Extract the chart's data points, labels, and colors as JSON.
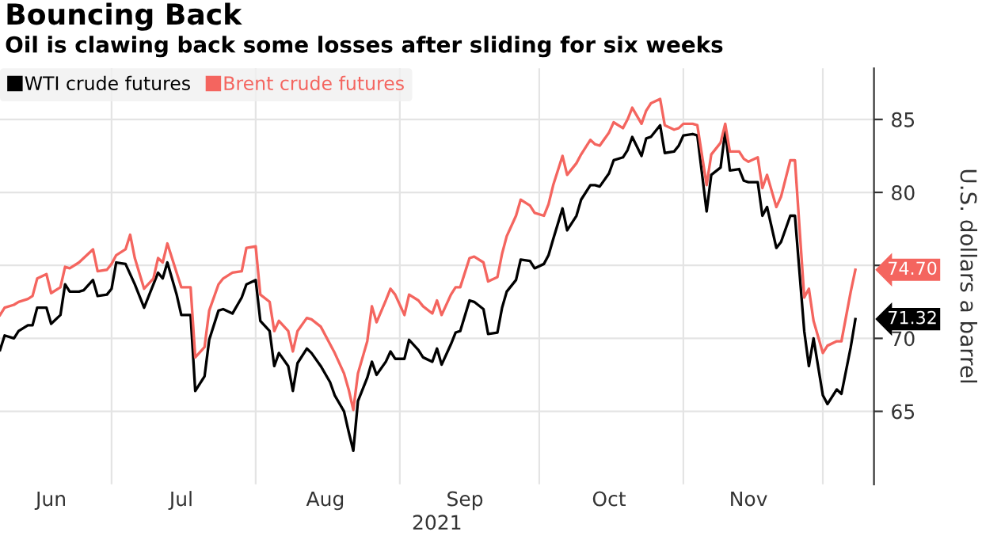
{
  "chart_data": {
    "type": "line",
    "title": "Bouncing Back",
    "subtitle": "Oil is clawing back some losses after sliding for six weeks",
    "xlabel": "2021",
    "ylabel": "U.S. dollars a barrel",
    "series": [
      {
        "name": "WTI crude futures",
        "color": "#000000",
        "x": [
          "2021-06-07",
          "2021-06-08",
          "2021-06-10",
          "2021-06-11",
          "2021-06-13",
          "2021-06-14",
          "2021-06-15",
          "2021-06-17",
          "2021-06-18",
          "2021-06-20",
          "2021-06-21",
          "2021-06-22",
          "2021-06-24",
          "2021-06-25",
          "2021-06-27",
          "2021-06-28",
          "2021-06-30",
          "2021-07-01",
          "2021-07-02",
          "2021-07-04",
          "2021-07-06",
          "2021-07-08",
          "2021-07-11",
          "2021-07-12",
          "2021-07-13",
          "2021-07-15",
          "2021-07-16",
          "2021-07-18",
          "2021-07-19",
          "2021-07-21",
          "2021-07-22",
          "2021-07-24",
          "2021-07-25",
          "2021-07-27",
          "2021-07-29",
          "2021-07-30",
          "2021-08-01",
          "2021-08-02",
          "2021-08-04",
          "2021-08-05",
          "2021-08-06",
          "2021-08-08",
          "2021-08-09",
          "2021-08-10",
          "2021-08-12",
          "2021-08-13",
          "2021-08-15",
          "2021-08-17",
          "2021-08-18",
          "2021-08-20",
          "2021-08-21",
          "2021-08-22",
          "2021-08-23",
          "2021-08-25",
          "2021-08-26",
          "2021-08-27",
          "2021-08-29",
          "2021-08-30",
          "2021-08-31",
          "2021-09-02",
          "2021-09-03",
          "2021-09-05",
          "2021-09-06",
          "2021-09-08",
          "2021-09-09",
          "2021-09-10",
          "2021-09-12",
          "2021-09-13",
          "2021-09-14",
          "2021-09-16",
          "2021-09-17",
          "2021-09-19",
          "2021-09-20",
          "2021-09-22",
          "2021-09-23",
          "2021-09-24",
          "2021-09-26",
          "2021-09-27",
          "2021-09-29",
          "2021-09-30",
          "2021-10-02",
          "2021-10-03",
          "2021-10-04",
          "2021-10-06",
          "2021-10-07",
          "2021-10-09",
          "2021-10-10",
          "2021-10-12",
          "2021-10-13",
          "2021-10-14",
          "2021-10-16",
          "2021-10-17",
          "2021-10-19",
          "2021-10-20",
          "2021-10-21",
          "2021-10-23",
          "2021-10-24",
          "2021-10-25",
          "2021-10-27",
          "2021-10-28",
          "2021-10-30",
          "2021-10-31",
          "2021-11-01",
          "2021-11-03",
          "2021-11-04",
          "2021-11-06",
          "2021-11-07",
          "2021-11-09",
          "2021-11-10",
          "2021-11-11",
          "2021-11-13",
          "2021-11-14",
          "2021-11-15",
          "2021-11-17",
          "2021-11-18",
          "2021-11-19",
          "2021-11-21",
          "2021-11-22",
          "2021-11-24",
          "2021-11-25",
          "2021-11-27",
          "2021-11-28",
          "2021-11-29",
          "2021-12-01",
          "2021-12-02",
          "2021-12-04",
          "2021-12-05",
          "2021-12-07",
          "2021-12-08"
        ],
        "values": [
          69.2,
          70.2,
          70.0,
          70.5,
          70.9,
          70.9,
          72.1,
          72.1,
          71.0,
          71.6,
          73.7,
          73.2,
          73.2,
          73.3,
          74.0,
          72.9,
          73.0,
          73.4,
          75.2,
          75.1,
          73.7,
          72.1,
          74.5,
          74.1,
          75.2,
          73.0,
          71.6,
          71.6,
          66.4,
          67.4,
          69.9,
          71.9,
          72.0,
          71.7,
          72.8,
          73.7,
          74.0,
          71.2,
          70.5,
          68.1,
          69.0,
          68.1,
          66.4,
          68.3,
          69.3,
          69.0,
          68.1,
          67.0,
          66.1,
          65.0,
          63.6,
          62.3,
          65.7,
          67.3,
          68.4,
          67.5,
          68.4,
          69.1,
          68.6,
          68.6,
          69.9,
          69.2,
          68.7,
          68.4,
          69.3,
          68.2,
          69.6,
          70.4,
          70.5,
          72.6,
          72.5,
          72.0,
          70.3,
          70.4,
          72.1,
          73.2,
          74.0,
          75.4,
          75.3,
          74.8,
          75.1,
          75.7,
          76.8,
          78.9,
          77.4,
          78.4,
          79.5,
          80.5,
          80.5,
          80.4,
          81.3,
          82.2,
          82.4,
          82.9,
          83.8,
          82.5,
          83.7,
          83.8,
          84.6,
          82.7,
          82.8,
          83.2,
          83.9,
          84.0,
          83.9,
          78.7,
          81.2,
          81.7,
          84.2,
          81.5,
          81.6,
          80.8,
          80.7,
          80.7,
          78.4,
          79.0,
          76.2,
          76.6,
          78.4,
          78.4,
          70.5,
          68.1,
          70.0,
          66.1,
          65.5,
          66.5,
          66.2,
          69.4,
          71.32
        ],
        "value_labels": [
          null,
          null,
          null,
          null,
          null,
          null,
          null,
          null,
          null,
          null,
          null,
          null,
          null,
          null,
          null,
          null,
          null,
          null,
          null,
          null,
          null,
          null,
          null,
          null,
          null,
          null,
          null,
          null,
          null,
          null,
          null,
          null,
          null,
          null,
          null,
          null,
          null,
          null,
          null,
          null,
          null,
          null,
          null,
          null,
          null,
          null,
          null,
          null,
          null,
          null,
          null,
          null,
          null,
          null,
          null,
          null,
          null,
          null,
          null,
          null,
          null,
          null,
          null,
          null,
          null,
          null,
          null,
          null,
          null,
          null,
          null,
          null,
          null,
          null,
          null,
          null,
          null,
          null,
          null,
          null,
          null,
          null,
          null,
          null,
          null,
          null,
          null,
          null,
          null,
          null,
          null,
          null,
          null,
          null,
          null,
          null,
          null,
          null,
          null,
          null,
          null,
          null,
          null,
          null,
          null,
          null,
          null,
          null,
          null,
          null,
          null,
          null,
          null,
          null,
          null,
          null,
          null,
          null,
          null,
          null,
          null,
          null,
          null,
          null,
          null,
          null,
          null,
          null,
          "71.32"
        ]
      },
      {
        "name": "Brent crude futures",
        "color": "#f4655f",
        "x": [
          "2021-06-07",
          "2021-06-08",
          "2021-06-10",
          "2021-06-11",
          "2021-06-13",
          "2021-06-14",
          "2021-06-15",
          "2021-06-17",
          "2021-06-18",
          "2021-06-20",
          "2021-06-21",
          "2021-06-22",
          "2021-06-24",
          "2021-06-25",
          "2021-06-27",
          "2021-06-28",
          "2021-06-30",
          "2021-07-01",
          "2021-07-02",
          "2021-07-04",
          "2021-07-05",
          "2021-07-06",
          "2021-07-08",
          "2021-07-10",
          "2021-07-11",
          "2021-07-12",
          "2021-07-13",
          "2021-07-15",
          "2021-07-16",
          "2021-07-18",
          "2021-07-19",
          "2021-07-21",
          "2021-07-22",
          "2021-07-24",
          "2021-07-25",
          "2021-07-27",
          "2021-07-29",
          "2021-07-30",
          "2021-08-01",
          "2021-08-02",
          "2021-08-04",
          "2021-08-05",
          "2021-08-06",
          "2021-08-08",
          "2021-08-09",
          "2021-08-10",
          "2021-08-12",
          "2021-08-13",
          "2021-08-15",
          "2021-08-17",
          "2021-08-18",
          "2021-08-20",
          "2021-08-21",
          "2021-08-22",
          "2021-08-23",
          "2021-08-25",
          "2021-08-26",
          "2021-08-27",
          "2021-08-29",
          "2021-08-30",
          "2021-08-31",
          "2021-09-02",
          "2021-09-03",
          "2021-09-05",
          "2021-09-06",
          "2021-09-08",
          "2021-09-09",
          "2021-09-10",
          "2021-09-12",
          "2021-09-13",
          "2021-09-14",
          "2021-09-16",
          "2021-09-17",
          "2021-09-19",
          "2021-09-20",
          "2021-09-22",
          "2021-09-23",
          "2021-09-24",
          "2021-09-26",
          "2021-09-27",
          "2021-09-29",
          "2021-09-30",
          "2021-10-02",
          "2021-10-03",
          "2021-10-04",
          "2021-10-06",
          "2021-10-07",
          "2021-10-09",
          "2021-10-10",
          "2021-10-12",
          "2021-10-13",
          "2021-10-14",
          "2021-10-16",
          "2021-10-17",
          "2021-10-19",
          "2021-10-20",
          "2021-10-21",
          "2021-10-23",
          "2021-10-24",
          "2021-10-25",
          "2021-10-27",
          "2021-10-28",
          "2021-10-30",
          "2021-10-31",
          "2021-11-01",
          "2021-11-03",
          "2021-11-04",
          "2021-11-06",
          "2021-11-07",
          "2021-11-09",
          "2021-11-10",
          "2021-11-11",
          "2021-11-13",
          "2021-11-14",
          "2021-11-15",
          "2021-11-17",
          "2021-11-18",
          "2021-11-19",
          "2021-11-21",
          "2021-11-22",
          "2021-11-24",
          "2021-11-25",
          "2021-11-27",
          "2021-11-28",
          "2021-11-29",
          "2021-12-01",
          "2021-12-02",
          "2021-12-04",
          "2021-12-05",
          "2021-12-07",
          "2021-12-08"
        ],
        "values": [
          71.6,
          72.1,
          72.3,
          72.5,
          72.7,
          72.9,
          74.1,
          74.4,
          73.1,
          73.5,
          74.9,
          74.8,
          75.2,
          75.5,
          76.1,
          74.6,
          74.7,
          75.1,
          75.7,
          76.1,
          77.1,
          75.5,
          73.4,
          74.1,
          75.5,
          75.2,
          76.5,
          74.5,
          73.5,
          73.5,
          68.7,
          69.4,
          71.9,
          73.7,
          74.1,
          74.5,
          74.6,
          76.2,
          76.3,
          73.0,
          72.5,
          70.5,
          71.2,
          70.5,
          69.1,
          70.5,
          71.4,
          71.3,
          70.8,
          69.6,
          69.0,
          67.6,
          66.5,
          65.1,
          67.6,
          69.8,
          72.2,
          71.1,
          72.6,
          73.4,
          73.0,
          71.6,
          73.0,
          72.6,
          72.2,
          71.7,
          72.6,
          71.6,
          73.0,
          73.5,
          73.5,
          75.5,
          75.6,
          75.2,
          73.9,
          74.2,
          75.8,
          77.0,
          78.4,
          79.5,
          79.1,
          78.6,
          78.4,
          79.2,
          80.5,
          82.5,
          81.2,
          82.0,
          82.6,
          83.6,
          83.3,
          83.2,
          84.1,
          84.8,
          84.4,
          85.0,
          85.8,
          84.7,
          85.6,
          86.1,
          86.4,
          84.6,
          84.3,
          84.4,
          84.7,
          84.7,
          84.6,
          80.5,
          82.6,
          83.4,
          84.7,
          82.8,
          82.8,
          82.3,
          82.1,
          82.4,
          80.3,
          81.2,
          79.0,
          79.7,
          82.2,
          82.2,
          72.8,
          73.4,
          71.2,
          69.0,
          69.5,
          69.8,
          69.8,
          73.2,
          74.7
        ],
        "value_labels": [
          null,
          null,
          null,
          null,
          null,
          null,
          null,
          null,
          null,
          null,
          null,
          null,
          null,
          null,
          null,
          null,
          null,
          null,
          null,
          null,
          null,
          null,
          null,
          null,
          null,
          null,
          null,
          null,
          null,
          null,
          null,
          null,
          null,
          null,
          null,
          null,
          null,
          null,
          null,
          null,
          null,
          null,
          null,
          null,
          null,
          null,
          null,
          null,
          null,
          null,
          null,
          null,
          null,
          null,
          null,
          null,
          null,
          null,
          null,
          null,
          null,
          null,
          null,
          null,
          null,
          null,
          null,
          null,
          null,
          null,
          null,
          null,
          null,
          null,
          null,
          null,
          null,
          null,
          null,
          null,
          null,
          null,
          null,
          null,
          null,
          null,
          null,
          null,
          null,
          null,
          null,
          null,
          null,
          null,
          null,
          null,
          null,
          null,
          null,
          null,
          null,
          null,
          null,
          null,
          null,
          null,
          null,
          null,
          null,
          null,
          null,
          null,
          null,
          null,
          null,
          null,
          null,
          null,
          null,
          null,
          null,
          null,
          null,
          null,
          null,
          null,
          null,
          null,
          null,
          null,
          "74.70"
        ]
      }
    ],
    "xlim": [
      "2021-06-07",
      "2021-12-12"
    ],
    "xticks": [
      {
        "value": "2021-06-18",
        "label": "Jun"
      },
      {
        "value": "2021-07-01",
        "label": null
      },
      {
        "value": "2021-07-16",
        "label": "Jul"
      },
      {
        "value": "2021-08-01",
        "label": null
      },
      {
        "value": "2021-08-16",
        "label": "Aug"
      },
      {
        "value": "2021-09-01",
        "label": null
      },
      {
        "value": "2021-09-15",
        "label": "Sep"
      },
      {
        "value": "2021-10-01",
        "label": null
      },
      {
        "value": "2021-10-16",
        "label": "Oct"
      },
      {
        "value": "2021-11-01",
        "label": null
      },
      {
        "value": "2021-11-15",
        "label": "Nov"
      },
      {
        "value": "2021-12-01",
        "label": null
      }
    ],
    "ylim": [
      60,
      88.5
    ],
    "yticks": [
      65,
      70,
      {
        "value": 75,
        "label": null
      },
      80,
      85
    ],
    "grid": true,
    "legend": "top left",
    "marker": "none",
    "line_style": "solid"
  }
}
